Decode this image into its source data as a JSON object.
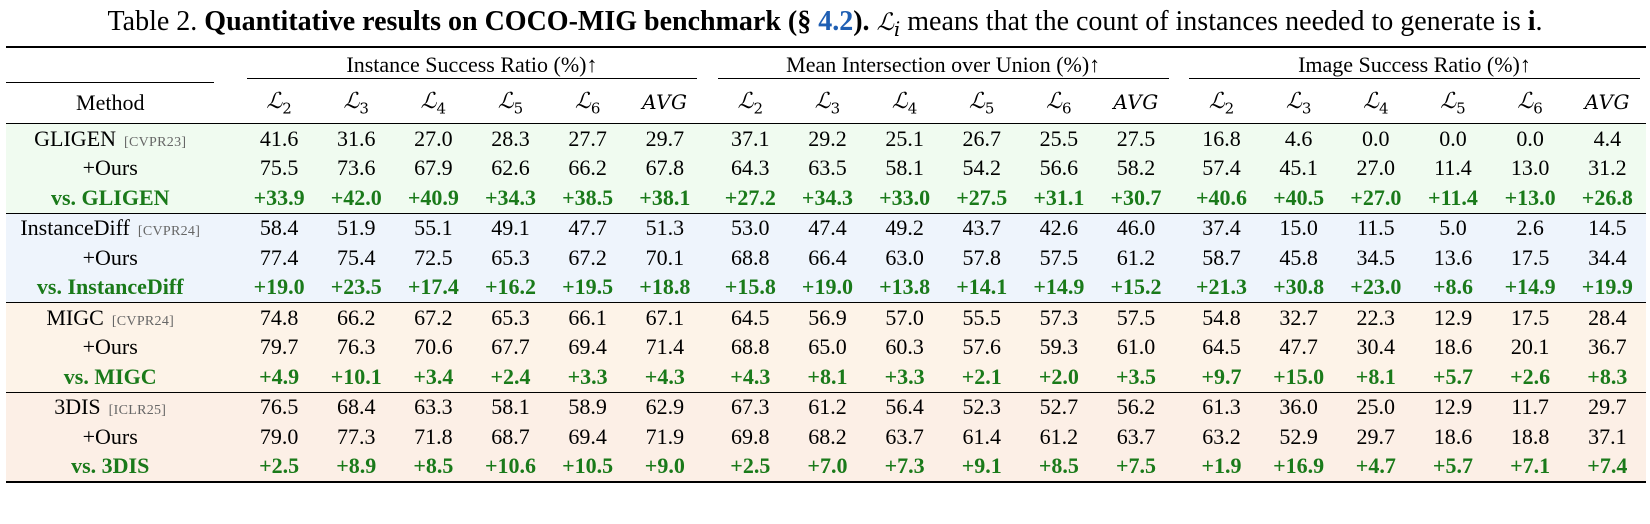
{
  "caption": {
    "prefix": "Table 2.",
    "bold": "Quantitative results on COCO-MIG benchmark",
    "sec_open": "(§ ",
    "sec_ref": "4.2",
    "sec_close": ").",
    "note_symbol": "ℒ",
    "note_sub": "i",
    "note_text": " means that the count of instances needed to generate is ",
    "note_bold": "i",
    "note_end": "."
  },
  "table": {
    "groups": [
      "Instance Success Ratio (%)↑",
      "Mean Intersection over Union (%)↑",
      "Image Success Ratio (%)↑"
    ],
    "method_header": "Method",
    "level_symbol": "ℒ",
    "levels": [
      "2",
      "3",
      "4",
      "5",
      "6"
    ],
    "avg_label": "AVG",
    "blocks": [
      {
        "name": "GLIGEN",
        "venue": "[CVPR23]",
        "base": [
          "41.6",
          "31.6",
          "27.0",
          "28.3",
          "27.7",
          "29.7",
          "37.1",
          "29.2",
          "25.1",
          "26.7",
          "25.5",
          "27.5",
          "16.8",
          "4.6",
          "0.0",
          "0.0",
          "0.0",
          "4.4"
        ],
        "ours_label": "+Ours",
        "ours": [
          "75.5",
          "73.6",
          "67.9",
          "62.6",
          "66.2",
          "67.8",
          "64.3",
          "63.5",
          "58.1",
          "54.2",
          "56.6",
          "58.2",
          "57.4",
          "45.1",
          "27.0",
          "11.4",
          "13.0",
          "31.2"
        ],
        "vs_label": "vs. GLIGEN",
        "vs": [
          "+33.9",
          "+42.0",
          "+40.9",
          "+34.3",
          "+38.5",
          "+38.1",
          "+27.2",
          "+34.3",
          "+33.0",
          "+27.5",
          "+31.1",
          "+30.7",
          "+40.6",
          "+40.5",
          "+27.0",
          "+11.4",
          "+13.0",
          "+26.8"
        ]
      },
      {
        "name": "InstanceDiff",
        "venue": "[CVPR24]",
        "base": [
          "58.4",
          "51.9",
          "55.1",
          "49.1",
          "47.7",
          "51.3",
          "53.0",
          "47.4",
          "49.2",
          "43.7",
          "42.6",
          "46.0",
          "37.4",
          "15.0",
          "11.5",
          "5.0",
          "2.6",
          "14.5"
        ],
        "ours_label": "+Ours",
        "ours": [
          "77.4",
          "75.4",
          "72.5",
          "65.3",
          "67.2",
          "70.1",
          "68.8",
          "66.4",
          "63.0",
          "57.8",
          "57.5",
          "61.2",
          "58.7",
          "45.8",
          "34.5",
          "13.6",
          "17.5",
          "34.4"
        ],
        "vs_label": "vs. InstanceDiff",
        "vs": [
          "+19.0",
          "+23.5",
          "+17.4",
          "+16.2",
          "+19.5",
          "+18.8",
          "+15.8",
          "+19.0",
          "+13.8",
          "+14.1",
          "+14.9",
          "+15.2",
          "+21.3",
          "+30.8",
          "+23.0",
          "+8.6",
          "+14.9",
          "+19.9"
        ]
      },
      {
        "name": "MIGC",
        "venue": "[CVPR24]",
        "base": [
          "74.8",
          "66.2",
          "67.2",
          "65.3",
          "66.1",
          "67.1",
          "64.5",
          "56.9",
          "57.0",
          "55.5",
          "57.3",
          "57.5",
          "54.8",
          "32.7",
          "22.3",
          "12.9",
          "17.5",
          "28.4"
        ],
        "ours_label": "+Ours",
        "ours": [
          "79.7",
          "76.3",
          "70.6",
          "67.7",
          "69.4",
          "71.4",
          "68.8",
          "65.0",
          "60.3",
          "57.6",
          "59.3",
          "61.0",
          "64.5",
          "47.7",
          "30.4",
          "18.6",
          "20.1",
          "36.7"
        ],
        "vs_label": "vs. MIGC",
        "vs": [
          "+4.9",
          "+10.1",
          "+3.4",
          "+2.4",
          "+3.3",
          "+4.3",
          "+4.3",
          "+8.1",
          "+3.3",
          "+2.1",
          "+2.0",
          "+3.5",
          "+9.7",
          "+15.0",
          "+8.1",
          "+5.7",
          "+2.6",
          "+8.3"
        ]
      },
      {
        "name": "3DIS",
        "venue": "[ICLR25]",
        "base": [
          "76.5",
          "68.4",
          "63.3",
          "58.1",
          "58.9",
          "62.9",
          "67.3",
          "61.2",
          "56.4",
          "52.3",
          "52.7",
          "56.2",
          "61.3",
          "36.0",
          "25.0",
          "12.9",
          "11.7",
          "29.7"
        ],
        "ours_label": "+Ours",
        "ours": [
          "79.0",
          "77.3",
          "71.8",
          "68.7",
          "69.4",
          "71.9",
          "69.8",
          "68.2",
          "63.7",
          "61.4",
          "61.2",
          "63.7",
          "63.2",
          "52.9",
          "29.7",
          "18.6",
          "18.8",
          "37.1"
        ],
        "vs_label": "vs. 3DIS",
        "vs": [
          "+2.5",
          "+8.9",
          "+8.5",
          "+10.6",
          "+10.5",
          "+9.0",
          "+2.5",
          "+7.0",
          "+7.3",
          "+9.1",
          "+8.5",
          "+7.5",
          "+1.9",
          "+16.9",
          "+4.7",
          "+5.7",
          "+7.1",
          "+7.4"
        ]
      }
    ]
  }
}
